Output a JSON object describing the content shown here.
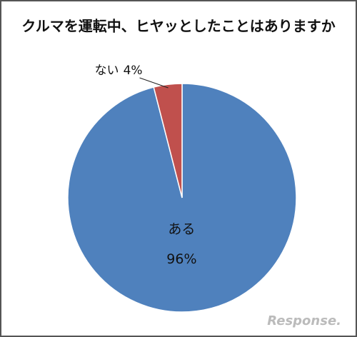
{
  "chart_data": {
    "type": "pie",
    "title": "クルマを運転中、ヒヤッとしたことはありますか",
    "categories": [
      "ある",
      "ない"
    ],
    "values": [
      96,
      4
    ],
    "value_labels": [
      "96%",
      "4%"
    ],
    "colors": [
      "#4f81bd",
      "#c0504d"
    ],
    "watermark": "Response."
  }
}
